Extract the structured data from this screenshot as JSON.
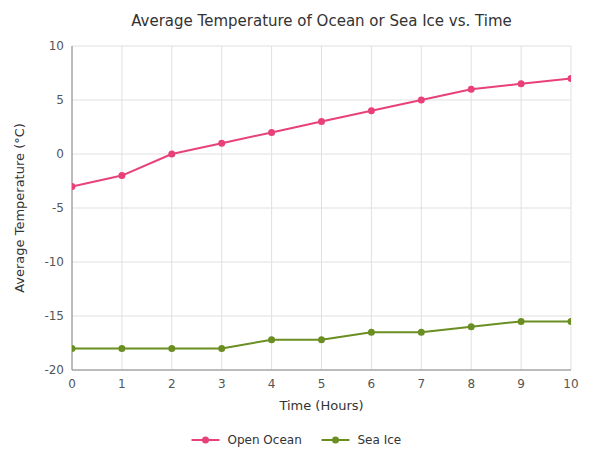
{
  "chart_data": {
    "type": "line",
    "title": "Average Temperature of Ocean or Sea Ice vs. Time",
    "xlabel": "Time (Hours)",
    "ylabel": "Average Temperature (°C)",
    "x": [
      0,
      1,
      2,
      3,
      4,
      5,
      6,
      7,
      8,
      9,
      10
    ],
    "series": [
      {
        "name": "Open Ocean",
        "color": "#E8417A",
        "marker": "circle",
        "values": [
          -3,
          -2,
          0,
          1,
          2,
          3,
          4,
          5,
          6,
          6.5,
          7
        ]
      },
      {
        "name": "Sea Ice",
        "color": "#6B8E23",
        "marker": "circle",
        "values": [
          -18,
          -18,
          -18,
          -18,
          -17.2,
          -17.2,
          -16.5,
          -16.5,
          -16.0,
          -15.5,
          -15.5
        ]
      }
    ],
    "xlim": [
      0,
      10
    ],
    "ylim": [
      -20,
      10
    ],
    "xticks": [
      0,
      1,
      2,
      3,
      4,
      5,
      6,
      7,
      8,
      9,
      10
    ],
    "yticks": [
      -20,
      -15,
      -10,
      -5,
      0,
      5,
      10
    ],
    "grid": true,
    "legend": "bottom"
  }
}
